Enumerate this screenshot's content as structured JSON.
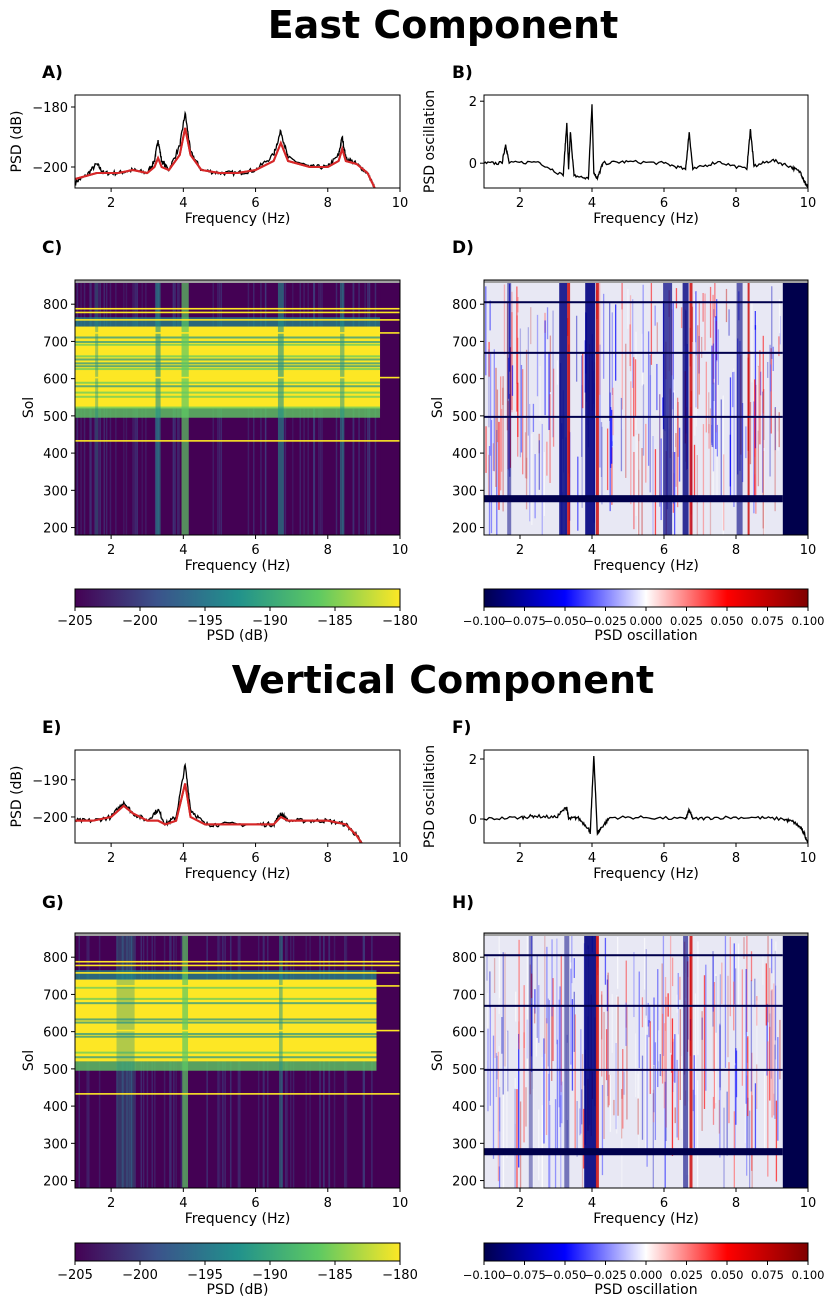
{
  "sections": [
    {
      "title": "East Component"
    },
    {
      "title": "Vertical Component"
    }
  ],
  "panels": {
    "A": "A)",
    "B": "B)",
    "C": "C)",
    "D": "D)",
    "E": "E)",
    "F": "F)",
    "G": "G)",
    "H": "H)"
  },
  "axes": {
    "frequency_label": "Frequency (Hz)",
    "psd_db_label": "PSD (dB)",
    "psd_osc_label": "PSD oscillation",
    "sol_label": "Sol"
  },
  "colorbars": {
    "psd": {
      "label": "PSD (dB)",
      "ticks": [
        "-205",
        "-200",
        "-195",
        "-190",
        "-185",
        "-180"
      ],
      "colormap": "viridis"
    },
    "osc": {
      "label": "PSD oscillation",
      "ticks": [
        "-0.100",
        "-0.075",
        "-0.050",
        "-0.025",
        "0.000",
        "0.025",
        "0.050",
        "0.075",
        "0.100"
      ],
      "colormap": "seismic"
    }
  },
  "colors": {
    "spectrum_black": "#000000",
    "fit_red": "#d62728",
    "viridis_low": "#440154",
    "viridis_high": "#fde725",
    "seismic_low": "#00004c",
    "seismic_high": "#7f0000"
  },
  "chart_data": [
    {
      "id": "A",
      "type": "line",
      "title": "",
      "xlabel": "Frequency (Hz)",
      "ylabel": "PSD (dB)",
      "xlim": [
        1,
        10
      ],
      "ylim": [
        -207,
        -176
      ],
      "xticks": [
        2,
        4,
        6,
        8,
        10
      ],
      "yticks": [
        -180,
        -200
      ],
      "series": [
        {
          "role": "spectrum",
          "x": [
            1.0,
            1.3,
            1.6,
            1.8,
            2.2,
            2.6,
            3.0,
            3.2,
            3.3,
            3.4,
            3.6,
            3.9,
            4.05,
            4.2,
            4.5,
            5.0,
            5.5,
            6.0,
            6.5,
            6.7,
            6.9,
            7.5,
            8.0,
            8.3,
            8.4,
            8.5,
            8.8,
            9.1,
            9.3
          ],
          "y": [
            -205,
            -203,
            -199,
            -202,
            -202,
            -201,
            -202,
            -198,
            -191,
            -198,
            -201,
            -193,
            -182,
            -195,
            -201,
            -202,
            -202,
            -201,
            -196,
            -188,
            -197,
            -200,
            -200,
            -196,
            -190,
            -197,
            -199,
            -202,
            -207
          ]
        },
        {
          "role": "fit",
          "x": [
            1.0,
            1.6,
            2.2,
            2.6,
            3.0,
            3.2,
            3.3,
            3.4,
            3.6,
            3.9,
            4.05,
            4.2,
            4.5,
            5.0,
            5.5,
            6.0,
            6.5,
            6.7,
            6.9,
            7.5,
            8.0,
            8.3,
            8.4,
            8.5,
            8.8,
            9.1,
            9.3
          ],
          "y": [
            -204,
            -202,
            -202,
            -201,
            -202,
            -200,
            -197,
            -200,
            -201,
            -196,
            -187,
            -196,
            -201,
            -202,
            -202,
            -201,
            -198,
            -192,
            -198,
            -200,
            -200,
            -198,
            -194,
            -198,
            -199,
            -202,
            -207
          ]
        }
      ]
    },
    {
      "id": "B",
      "type": "line",
      "title": "",
      "xlabel": "Frequency (Hz)",
      "ylabel": "PSD oscillation",
      "xlim": [
        1,
        10
      ],
      "ylim": [
        -0.8,
        2.2
      ],
      "xticks": [
        2,
        4,
        6,
        8,
        10
      ],
      "yticks": [
        0,
        2
      ],
      "series": [
        {
          "role": "oscillation",
          "x": [
            1.0,
            1.5,
            1.6,
            1.7,
            2.5,
            3.2,
            3.3,
            3.35,
            3.4,
            3.5,
            3.9,
            4.0,
            4.05,
            4.15,
            4.3,
            5.0,
            6.0,
            6.6,
            6.7,
            6.8,
            7.5,
            8.3,
            8.4,
            8.5,
            9.0,
            9.5,
            9.8,
            9.9,
            10.0
          ],
          "y": [
            0.0,
            0.0,
            0.6,
            0.0,
            0.05,
            -0.4,
            1.3,
            -0.2,
            1.0,
            -0.4,
            -0.5,
            1.9,
            -0.3,
            -0.5,
            0.0,
            0.05,
            0.0,
            -0.2,
            1.0,
            -0.2,
            0.05,
            -0.2,
            1.1,
            -0.1,
            0.1,
            -0.1,
            -0.3,
            -0.6,
            -0.8
          ]
        }
      ]
    },
    {
      "id": "C",
      "type": "heatmap",
      "title": "",
      "xlabel": "Frequency (Hz)",
      "ylabel": "Sol",
      "xlim": [
        1,
        10
      ],
      "ylim": [
        180,
        865
      ],
      "xticks": [
        2,
        4,
        6,
        8,
        10
      ],
      "yticks": [
        200,
        300,
        400,
        500,
        600,
        700,
        800
      ],
      "colorbar": "psd"
    },
    {
      "id": "D",
      "type": "heatmap",
      "title": "",
      "xlabel": "Frequency (Hz)",
      "ylabel": "Sol",
      "xlim": [
        1,
        10
      ],
      "ylim": [
        180,
        865
      ],
      "xticks": [
        2,
        4,
        6,
        8,
        10
      ],
      "yticks": [
        200,
        300,
        400,
        500,
        600,
        700,
        800
      ],
      "colorbar": "osc"
    },
    {
      "id": "E",
      "type": "line",
      "title": "",
      "xlabel": "Frequency (Hz)",
      "ylabel": "PSD (dB)",
      "xlim": [
        1,
        10
      ],
      "ylim": [
        -207,
        -182
      ],
      "xticks": [
        2,
        4,
        6,
        8,
        10
      ],
      "yticks": [
        -190,
        -200
      ],
      "series": [
        {
          "role": "spectrum",
          "x": [
            1.0,
            1.5,
            2.0,
            2.35,
            2.6,
            3.0,
            3.3,
            3.5,
            3.8,
            4.05,
            4.2,
            4.6,
            5.0,
            6.0,
            6.5,
            6.7,
            6.9,
            7.5,
            8.0,
            8.5,
            8.8,
            9.0
          ],
          "y": [
            -201,
            -201,
            -200,
            -196,
            -199,
            -201,
            -198,
            -202,
            -200,
            -186,
            -198,
            -202,
            -202,
            -202,
            -202,
            -199,
            -201,
            -201,
            -201,
            -202,
            -205,
            -208
          ]
        },
        {
          "role": "fit",
          "x": [
            1.0,
            1.5,
            2.0,
            2.35,
            2.6,
            3.0,
            3.3,
            3.5,
            3.8,
            4.05,
            4.2,
            4.6,
            5.0,
            6.0,
            6.5,
            6.7,
            6.9,
            7.5,
            8.0,
            8.5,
            8.8,
            9.0
          ],
          "y": [
            -201,
            -201,
            -200,
            -197,
            -199,
            -201,
            -201,
            -202,
            -201,
            -191,
            -200,
            -202,
            -202,
            -202,
            -202,
            -200,
            -201,
            -201,
            -201,
            -202,
            -205,
            -208
          ]
        }
      ]
    },
    {
      "id": "F",
      "type": "line",
      "title": "",
      "xlabel": "Frequency (Hz)",
      "ylabel": "PSD oscillation",
      "xlim": [
        1,
        10
      ],
      "ylim": [
        -0.8,
        2.3
      ],
      "xticks": [
        2,
        4,
        6,
        8,
        10
      ],
      "yticks": [
        0,
        2
      ],
      "series": [
        {
          "role": "oscillation",
          "x": [
            1.0,
            2.0,
            2.4,
            3.0,
            3.3,
            3.35,
            3.6,
            3.9,
            3.95,
            4.05,
            4.15,
            4.25,
            4.5,
            5.5,
            6.6,
            6.7,
            6.8,
            7.5,
            8.5,
            9.3,
            9.6,
            9.8,
            9.9,
            10.0
          ],
          "y": [
            0.0,
            0.05,
            0.1,
            0.05,
            0.4,
            0.0,
            0.05,
            -0.3,
            -0.5,
            2.1,
            -0.5,
            -0.3,
            0.05,
            0.05,
            0.0,
            0.3,
            0.0,
            0.05,
            0.05,
            0.0,
            -0.1,
            -0.3,
            -0.5,
            -0.8
          ]
        }
      ]
    },
    {
      "id": "G",
      "type": "heatmap",
      "title": "",
      "xlabel": "Frequency (Hz)",
      "ylabel": "Sol",
      "xlim": [
        1,
        10
      ],
      "ylim": [
        180,
        865
      ],
      "xticks": [
        2,
        4,
        6,
        8,
        10
      ],
      "yticks": [
        200,
        300,
        400,
        500,
        600,
        700,
        800
      ],
      "colorbar": "psd"
    },
    {
      "id": "H",
      "type": "heatmap",
      "title": "",
      "xlabel": "Frequency (Hz)",
      "ylabel": "Sol",
      "xlim": [
        1,
        10
      ],
      "ylim": [
        180,
        865
      ],
      "xticks": [
        2,
        4,
        6,
        8,
        10
      ],
      "yticks": [
        200,
        300,
        400,
        500,
        600,
        700,
        800
      ],
      "colorbar": "osc"
    }
  ]
}
